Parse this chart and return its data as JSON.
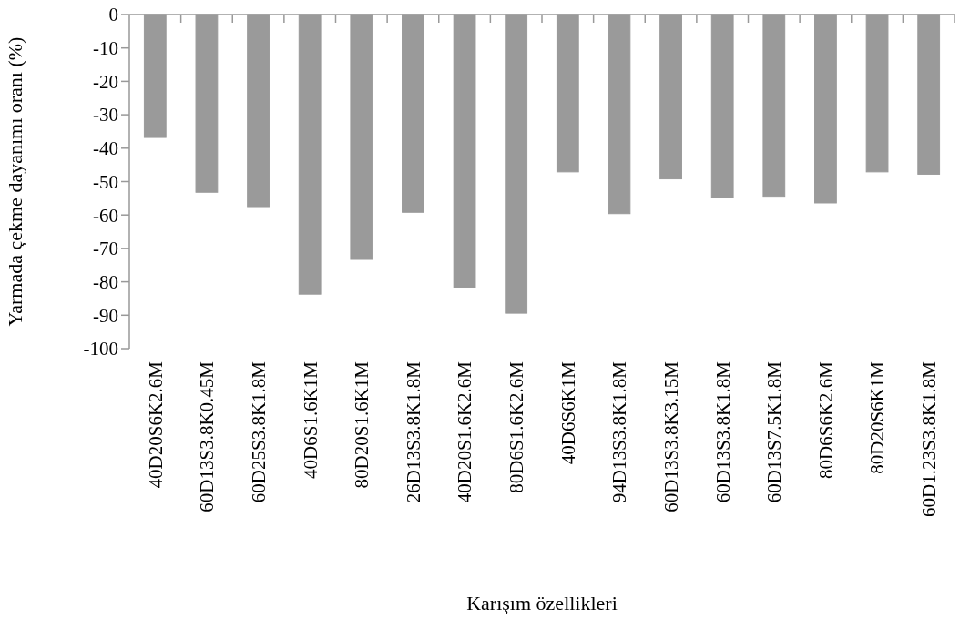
{
  "chart_data": {
    "type": "bar",
    "xlabel": "Karışım özellikleri",
    "ylabel": "Yarmada çekme dayanımı oranı (%)",
    "categories": [
      "40D20S6K2.6M",
      "60D13S3.8K0.45M",
      "60D25S3.8K1.8M",
      "40D6S1.6K1M",
      "80D20S1.6K1M",
      "26D13S3.8K1.8M",
      "40D20S1.6K2.6M",
      "80D6S1.6K2.6M",
      "40D6S6K1M",
      "94D13S3.8K1.8M",
      "60D13S3.8K3.15M",
      "60D13S3.8K1.8M",
      "60D13S7.5K1.8M",
      "80D6S6K2.6M",
      "80D20S6K1M",
      "60D1.23S3.8K1.8M"
    ],
    "values": [
      -36.8,
      -53.2,
      -57.5,
      -83.7,
      -73.3,
      -59.2,
      -81.6,
      -89.4,
      -47.1,
      -59.6,
      -49.2,
      -54.8,
      -54.4,
      -56.4,
      -47.1,
      -47.8
    ],
    "color": "#9a9a9a",
    "ylim": [
      -100,
      0
    ],
    "yticks": [
      -100,
      -90,
      -80,
      -70,
      -60,
      -50,
      -40,
      -30,
      -20,
      -10,
      0
    ],
    "grid": false
  }
}
